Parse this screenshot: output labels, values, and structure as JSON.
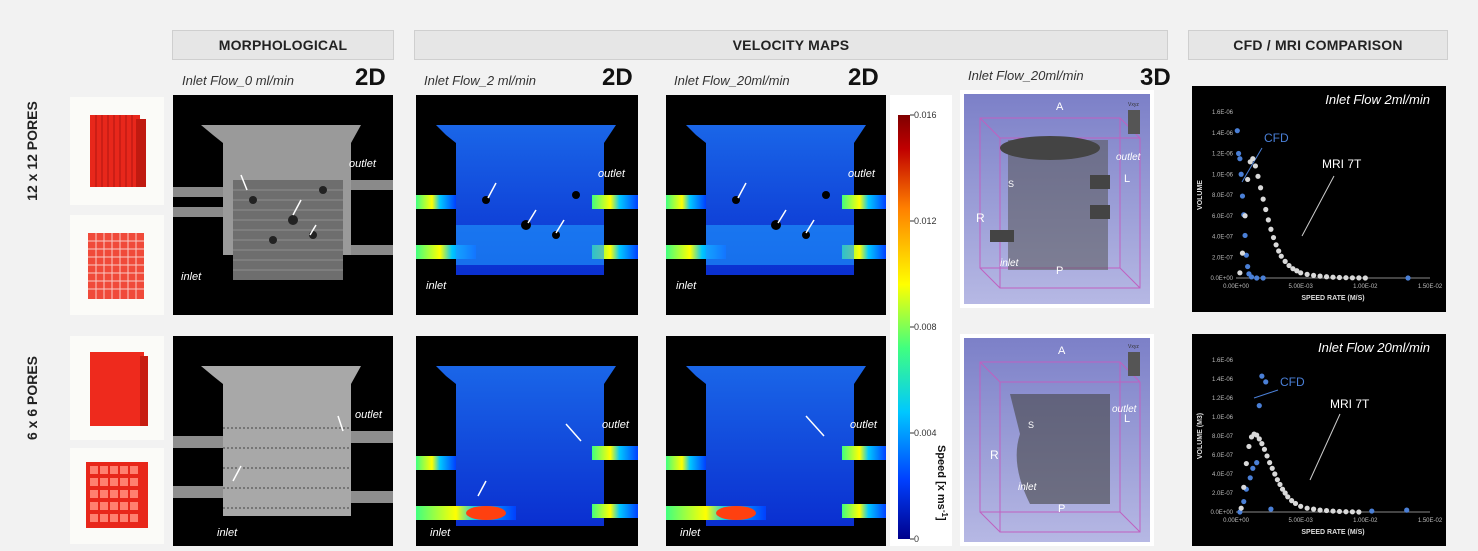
{
  "headers": {
    "morphological": "MORPHOLOGICAL",
    "velocity": "VELOCITY MAPS",
    "cfd": "CFD / MRI COMPARISON"
  },
  "rows": {
    "row1": "12 x 12 PORES",
    "row2": "6 x 6 PORES"
  },
  "columns": {
    "morph": {
      "flow": "Inlet Flow_0 ml/min",
      "dim": "2D"
    },
    "vel2": {
      "flow": "Inlet Flow_2 ml/min",
      "dim": "2D"
    },
    "vel20": {
      "flow": "Inlet Flow_20ml/min",
      "dim": "2D"
    },
    "vol3d": {
      "flow": "Inlet Flow_20ml/min",
      "dim": "3D"
    }
  },
  "labels": {
    "inlet": "inlet",
    "outlet": "outlet"
  },
  "orient": {
    "A": "A",
    "P": "P",
    "R": "R",
    "L": "L",
    "S": "S",
    "vxyz": "Vxyz"
  },
  "colorbar": {
    "label": "Speed [x ms",
    "unit_sup": "-1",
    "label_end": "]",
    "ticks": [
      "0.016",
      "0.012",
      "0.008",
      "0.004",
      "0"
    ],
    "colors": [
      "#00008b",
      "#0040ff",
      "#00c8ff",
      "#40ff80",
      "#ffff00",
      "#ff8000",
      "#c00000",
      "#800000"
    ]
  },
  "chart_data": [
    {
      "type": "scatter",
      "title": "Inlet Flow  2ml/min",
      "xlabel": "SPEED RATE (M/S)",
      "ylabel": "VOLUME",
      "xlim": [
        0,
        0.015
      ],
      "ylim": [
        0,
        1.6e-06
      ],
      "xticks": [
        "0.00E+00",
        "5.00E-03",
        "1.00E-02",
        "1.50E-02"
      ],
      "yticks": [
        "0.0E+00",
        "2.0E-07",
        "4.0E-07",
        "6.0E-07",
        "8.0E-07",
        "1.0E-06",
        "1.2E-06",
        "1.4E-06",
        "1.6E-06"
      ],
      "series": [
        {
          "name": "CFD",
          "color": "#4a7fd6",
          "x": [
            0.0001,
            0.0002,
            0.0003,
            0.0004,
            0.0005,
            0.0006,
            0.0007,
            0.0008,
            0.0009,
            0.001,
            0.0012,
            0.0016,
            0.0021,
            0.0133
          ],
          "y": [
            1.42e-06,
            1.2e-06,
            1.15e-06,
            1e-06,
            7.9e-07,
            6.1e-07,
            4.1e-07,
            2.2e-07,
            1.1e-07,
            4e-08,
            1e-08,
            0,
            0,
            0
          ]
        },
        {
          "name": "MRI 7T",
          "color": "#d9d9d9",
          "x": [
            0.0003,
            0.0005,
            0.0007,
            0.0009,
            0.0011,
            0.0013,
            0.0015,
            0.0017,
            0.0019,
            0.0021,
            0.0023,
            0.0025,
            0.0027,
            0.0029,
            0.0031,
            0.0033,
            0.0035,
            0.0038,
            0.0041,
            0.0044,
            0.0047,
            0.005,
            0.0055,
            0.006,
            0.0065,
            0.007,
            0.0075,
            0.008,
            0.0085,
            0.009,
            0.0095,
            0.01
          ],
          "y": [
            5e-08,
            2.4e-07,
            6e-07,
            9.5e-07,
            1.12e-06,
            1.15e-06,
            1.08e-06,
            9.8e-07,
            8.7e-07,
            7.6e-07,
            6.6e-07,
            5.6e-07,
            4.7e-07,
            3.9e-07,
            3.2e-07,
            2.6e-07,
            2.1e-07,
            1.6e-07,
            1.2e-07,
            9e-08,
            7e-08,
            5e-08,
            3.5e-08,
            2.5e-08,
            1.8e-08,
            1.2e-08,
            8e-09,
            5e-09,
            3e-09,
            2e-09,
            1e-09,
            0
          ]
        }
      ]
    },
    {
      "type": "scatter",
      "title": "Inlet Flow  20ml/min",
      "xlabel": "SPEED RATE (M/S)",
      "ylabel": "VOLUME (M3)",
      "xlim": [
        0,
        0.015
      ],
      "ylim": [
        0,
        1.6e-06
      ],
      "xticks": [
        "0.00E+00",
        "5.00E-03",
        "1.00E-02",
        "1.50E-02"
      ],
      "yticks": [
        "0.0E+00",
        "2.0E-07",
        "4.0E-07",
        "6.0E-07",
        "8.0E-07",
        "1.0E-06",
        "1.2E-06",
        "1.4E-06",
        "1.6E-06"
      ],
      "series": [
        {
          "name": "CFD",
          "color": "#4a7fd6",
          "x": [
            0.0003,
            0.0006,
            0.0008,
            0.0011,
            0.0013,
            0.0016,
            0.0018,
            0.002,
            0.0023,
            0.0027,
            0.0105,
            0.0132
          ],
          "y": [
            0,
            1.1e-07,
            2.4e-07,
            3.6e-07,
            4.6e-07,
            5.2e-07,
            1.12e-06,
            1.43e-06,
            1.37e-06,
            3e-08,
            1e-08,
            2e-08
          ]
        },
        {
          "name": "MRI 7T",
          "color": "#d9d9d9",
          "x": [
            0.0004,
            0.0006,
            0.0008,
            0.001,
            0.0012,
            0.0014,
            0.0016,
            0.0018,
            0.002,
            0.0022,
            0.0024,
            0.0026,
            0.0028,
            0.003,
            0.0032,
            0.0034,
            0.0036,
            0.0038,
            0.004,
            0.0043,
            0.0046,
            0.005,
            0.0055,
            0.006,
            0.0065,
            0.007,
            0.0075,
            0.008,
            0.0085,
            0.009,
            0.0095
          ],
          "y": [
            4e-08,
            2.6e-07,
            5.1e-07,
            6.9e-07,
            7.9e-07,
            8.2e-07,
            8.1e-07,
            7.7e-07,
            7.2e-07,
            6.6e-07,
            5.9e-07,
            5.2e-07,
            4.6e-07,
            4e-07,
            3.4e-07,
            2.9e-07,
            2.4e-07,
            2e-07,
            1.6e-07,
            1.2e-07,
            9e-08,
            6e-08,
            4e-08,
            3e-08,
            2e-08,
            1.5e-08,
            1e-08,
            6e-09,
            3e-09,
            2e-09,
            0
          ]
        }
      ]
    }
  ]
}
